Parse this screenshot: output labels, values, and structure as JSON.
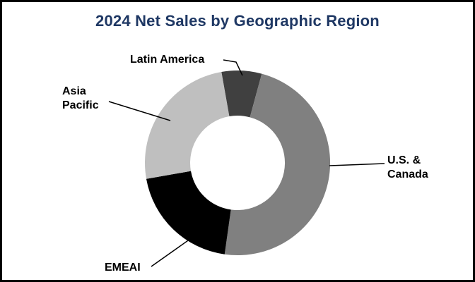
{
  "title": "2024 Net Sales by Geographic Region",
  "chart_data": {
    "type": "pie",
    "donut": true,
    "title": "2024 Net Sales by Geographic Region",
    "start_angle_deg": -10,
    "direction": "clockwise-from-top",
    "legend_position": "outside-labels-with-leader-lines",
    "segments": [
      {
        "label": "Latin America",
        "value": 7,
        "color": "#404040"
      },
      {
        "label": "U.S. & Canada",
        "value": 48,
        "color": "#808080"
      },
      {
        "label": "EMEAI",
        "value": 20,
        "color": "#000000"
      },
      {
        "label": "Asia Pacific",
        "value": 25,
        "color": "#BFBFBF"
      }
    ],
    "note": "segment values estimated from arc angles; no data labels shown in figure"
  },
  "labels": {
    "latin_america": "Latin America",
    "asia_pacific_line1": "Asia",
    "asia_pacific_line2": "Pacific",
    "us_canada_line1": "U.S. &",
    "us_canada_line2": "Canada",
    "emeai": "EMEAI"
  },
  "colors": {
    "title_text": "#1F3864",
    "label_text": "#000000",
    "border": "#000000",
    "background": "#FFFFFF",
    "leader_line": "#000000"
  }
}
